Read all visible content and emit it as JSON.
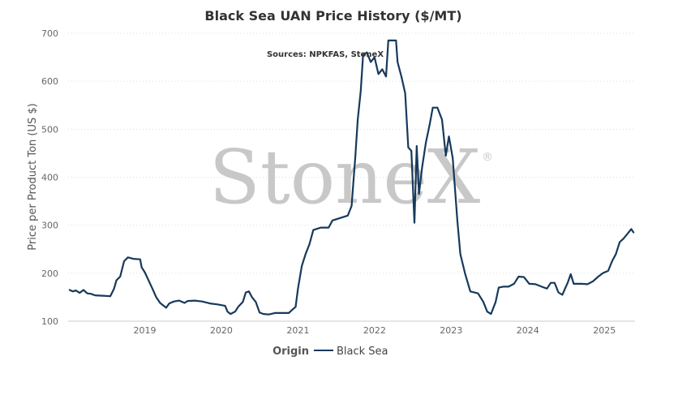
{
  "chart_data": {
    "type": "line",
    "title": "Black Sea UAN Price History ($/MT)",
    "subtitle": "Sources: NPKFAS, StoneX",
    "watermark": "StoneX",
    "watermark_mark": "®",
    "xlabel": "",
    "ylabel": "Price per Product Ton (US $)",
    "ylim": [
      100,
      700
    ],
    "yticks": [
      100,
      200,
      300,
      400,
      500,
      600,
      700
    ],
    "xlim": [
      2018.0,
      2025.4
    ],
    "xticks": [
      2019,
      2020,
      2021,
      2022,
      2023,
      2024,
      2025
    ],
    "xtick_labels": [
      "2019",
      "2020",
      "2021",
      "2022",
      "2023",
      "2024",
      "2025"
    ],
    "grid": "horizontal dotted",
    "legend": {
      "title": "Origin",
      "position": "bottom-center"
    },
    "colors": {
      "series": "#17395c",
      "grid": "#dddddd",
      "axis": "#cccccc"
    },
    "series": [
      {
        "name": "Black Sea",
        "points": [
          [
            2018.02,
            165
          ],
          [
            2018.06,
            162
          ],
          [
            2018.1,
            164
          ],
          [
            2018.15,
            159
          ],
          [
            2018.2,
            165
          ],
          [
            2018.25,
            158
          ],
          [
            2018.3,
            157
          ],
          [
            2018.35,
            154
          ],
          [
            2018.45,
            153
          ],
          [
            2018.55,
            152
          ],
          [
            2018.6,
            168
          ],
          [
            2018.63,
            185
          ],
          [
            2018.68,
            193
          ],
          [
            2018.73,
            225
          ],
          [
            2018.78,
            233
          ],
          [
            2018.85,
            230
          ],
          [
            2018.94,
            229
          ],
          [
            2018.96,
            212
          ],
          [
            2019.0,
            202
          ],
          [
            2019.05,
            185
          ],
          [
            2019.1,
            168
          ],
          [
            2019.15,
            150
          ],
          [
            2019.2,
            138
          ],
          [
            2019.28,
            128
          ],
          [
            2019.32,
            137
          ],
          [
            2019.38,
            141
          ],
          [
            2019.45,
            143
          ],
          [
            2019.52,
            138
          ],
          [
            2019.56,
            142
          ],
          [
            2019.65,
            143
          ],
          [
            2019.75,
            141
          ],
          [
            2019.85,
            137
          ],
          [
            2019.95,
            135
          ],
          [
            2020.05,
            132
          ],
          [
            2020.08,
            120
          ],
          [
            2020.12,
            115
          ],
          [
            2020.18,
            120
          ],
          [
            2020.22,
            130
          ],
          [
            2020.28,
            140
          ],
          [
            2020.32,
            160
          ],
          [
            2020.36,
            162
          ],
          [
            2020.4,
            150
          ],
          [
            2020.45,
            140
          ],
          [
            2020.5,
            118
          ],
          [
            2020.55,
            115
          ],
          [
            2020.62,
            114
          ],
          [
            2020.7,
            117
          ],
          [
            2020.8,
            117
          ],
          [
            2020.88,
            117
          ],
          [
            2020.92,
            123
          ],
          [
            2020.97,
            130
          ],
          [
            2021.0,
            168
          ],
          [
            2021.05,
            215
          ],
          [
            2021.1,
            240
          ],
          [
            2021.15,
            260
          ],
          [
            2021.2,
            290
          ],
          [
            2021.3,
            295
          ],
          [
            2021.4,
            295
          ],
          [
            2021.45,
            310
          ],
          [
            2021.55,
            315
          ],
          [
            2021.65,
            320
          ],
          [
            2021.7,
            340
          ],
          [
            2021.75,
            445
          ],
          [
            2021.78,
            520
          ],
          [
            2021.82,
            580
          ],
          [
            2021.85,
            655
          ],
          [
            2021.9,
            660
          ],
          [
            2021.95,
            640
          ],
          [
            2022.0,
            650
          ],
          [
            2022.05,
            615
          ],
          [
            2022.1,
            625
          ],
          [
            2022.15,
            610
          ],
          [
            2022.18,
            685
          ],
          [
            2022.28,
            685
          ],
          [
            2022.3,
            640
          ],
          [
            2022.35,
            610
          ],
          [
            2022.4,
            575
          ],
          [
            2022.44,
            462
          ],
          [
            2022.48,
            455
          ],
          [
            2022.52,
            305
          ],
          [
            2022.55,
            465
          ],
          [
            2022.58,
            365
          ],
          [
            2022.62,
            420
          ],
          [
            2022.67,
            472
          ],
          [
            2022.72,
            510
          ],
          [
            2022.76,
            545
          ],
          [
            2022.82,
            545
          ],
          [
            2022.88,
            520
          ],
          [
            2022.93,
            445
          ],
          [
            2022.97,
            485
          ],
          [
            2023.02,
            440
          ],
          [
            2023.08,
            310
          ],
          [
            2023.12,
            240
          ],
          [
            2023.18,
            200
          ],
          [
            2023.25,
            162
          ],
          [
            2023.35,
            158
          ],
          [
            2023.42,
            140
          ],
          [
            2023.47,
            120
          ],
          [
            2023.52,
            115
          ],
          [
            2023.58,
            140
          ],
          [
            2023.62,
            170
          ],
          [
            2023.68,
            172
          ],
          [
            2023.75,
            172
          ],
          [
            2023.82,
            178
          ],
          [
            2023.88,
            193
          ],
          [
            2023.95,
            192
          ],
          [
            2024.02,
            178
          ],
          [
            2024.1,
            177
          ],
          [
            2024.18,
            172
          ],
          [
            2024.25,
            168
          ],
          [
            2024.3,
            180
          ],
          [
            2024.35,
            180
          ],
          [
            2024.4,
            160
          ],
          [
            2024.45,
            155
          ],
          [
            2024.52,
            180
          ],
          [
            2024.56,
            198
          ],
          [
            2024.6,
            178
          ],
          [
            2024.7,
            178
          ],
          [
            2024.78,
            177
          ],
          [
            2024.85,
            183
          ],
          [
            2024.92,
            193
          ],
          [
            2024.98,
            200
          ],
          [
            2025.05,
            205
          ],
          [
            2025.1,
            225
          ],
          [
            2025.15,
            240
          ],
          [
            2025.2,
            265
          ],
          [
            2025.25,
            272
          ],
          [
            2025.3,
            282
          ],
          [
            2025.35,
            292
          ],
          [
            2025.38,
            285
          ]
        ]
      }
    ]
  }
}
